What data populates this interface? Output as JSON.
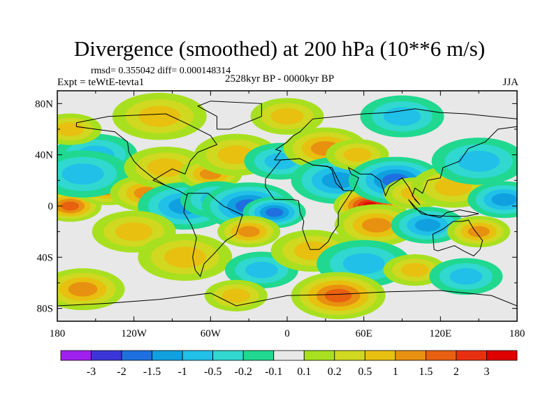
{
  "chart_data": {
    "type": "heatmap",
    "title": "Divergence (smoothed) at 200 hPa (10**6 m/s)",
    "stats_text": "rmsd= 0.355042 diff= 0.000148314",
    "left_label": "Expt = teWtE-tevta1",
    "center_label": "2528kyr BP - 0000kyr BP",
    "right_label": "JJA",
    "x_ticks": [
      "180",
      "120W",
      "60W",
      "0",
      "60E",
      "120E",
      "180"
    ],
    "x_tick_values": [
      -180,
      -120,
      -60,
      0,
      60,
      120,
      180
    ],
    "y_ticks": [
      "80N",
      "40N",
      "0",
      "40S",
      "80S"
    ],
    "y_tick_values": [
      80,
      40,
      0,
      -40,
      -80
    ],
    "xlim": [
      -180,
      180
    ],
    "ylim": [
      -90,
      90
    ],
    "colorbar": {
      "labels": [
        "-3",
        "-2",
        "-1.5",
        "-1",
        "-0.5",
        "-0.2",
        "-0.1",
        "0.1",
        "0.2",
        "0.5",
        "1",
        "1.5",
        "2",
        "3"
      ],
      "colors": [
        "#a020f0",
        "#3a36d8",
        "#1e70e0",
        "#10a0e0",
        "#20c0e8",
        "#30d8d0",
        "#20d890",
        "#e8e8e8",
        "#a8e020",
        "#d0d820",
        "#e8c010",
        "#e89010",
        "#e86010",
        "#e83010",
        "#e00000"
      ]
    },
    "anomalies": [
      {
        "lon": -170,
        "lat": 0,
        "value": 1.5
      },
      {
        "lon": -140,
        "lat": 15,
        "value": 1.5
      },
      {
        "lon": -150,
        "lat": 40,
        "value": -0.5
      },
      {
        "lon": -160,
        "lat": 25,
        "value": -0.5
      },
      {
        "lon": -170,
        "lat": 60,
        "value": 0.5
      },
      {
        "lon": -110,
        "lat": 10,
        "value": 1
      },
      {
        "lon": -95,
        "lat": 30,
        "value": 0.5
      },
      {
        "lon": -80,
        "lat": 0,
        "value": -1
      },
      {
        "lon": -60,
        "lat": 25,
        "value": 1
      },
      {
        "lon": -55,
        "lat": 5,
        "value": -0.5
      },
      {
        "lon": -40,
        "lat": 40,
        "value": 0.5
      },
      {
        "lon": -30,
        "lat": 0,
        "value": -1.5
      },
      {
        "lon": -10,
        "lat": -5,
        "value": -1.5
      },
      {
        "lon": -5,
        "lat": 35,
        "value": -0.5
      },
      {
        "lon": 30,
        "lat": 45,
        "value": 1
      },
      {
        "lon": 40,
        "lat": 20,
        "value": -1
      },
      {
        "lon": 55,
        "lat": 40,
        "value": 0.5
      },
      {
        "lon": 65,
        "lat": 0,
        "value": 3
      },
      {
        "lon": 70,
        "lat": -15,
        "value": 1
      },
      {
        "lon": 85,
        "lat": 20,
        "value": -1.5
      },
      {
        "lon": 100,
        "lat": 10,
        "value": 0.5
      },
      {
        "lon": 110,
        "lat": -15,
        "value": -1
      },
      {
        "lon": 130,
        "lat": 15,
        "value": 0.5
      },
      {
        "lon": 150,
        "lat": 35,
        "value": -0.5
      },
      {
        "lon": 150,
        "lat": -20,
        "value": 1
      },
      {
        "lon": 170,
        "lat": 5,
        "value": -1
      },
      {
        "lon": -120,
        "lat": -20,
        "value": 0.5
      },
      {
        "lon": -80,
        "lat": -40,
        "value": 0.5
      },
      {
        "lon": -30,
        "lat": -20,
        "value": 1
      },
      {
        "lon": -20,
        "lat": -50,
        "value": -0.5
      },
      {
        "lon": 20,
        "lat": -35,
        "value": 0.5
      },
      {
        "lon": 60,
        "lat": -45,
        "value": -0.5
      },
      {
        "lon": 100,
        "lat": -50,
        "value": 0.5
      },
      {
        "lon": 140,
        "lat": -55,
        "value": -0.5
      },
      {
        "lon": -160,
        "lat": -65,
        "value": 1
      },
      {
        "lon": 40,
        "lat": -70,
        "value": 1.5
      },
      {
        "lon": -40,
        "lat": -70,
        "value": 0.5
      },
      {
        "lon": 0,
        "lat": 70,
        "value": 0.5
      },
      {
        "lon": 90,
        "lat": 70,
        "value": -0.5
      },
      {
        "lon": -100,
        "lat": 70,
        "value": 0.5
      }
    ]
  }
}
